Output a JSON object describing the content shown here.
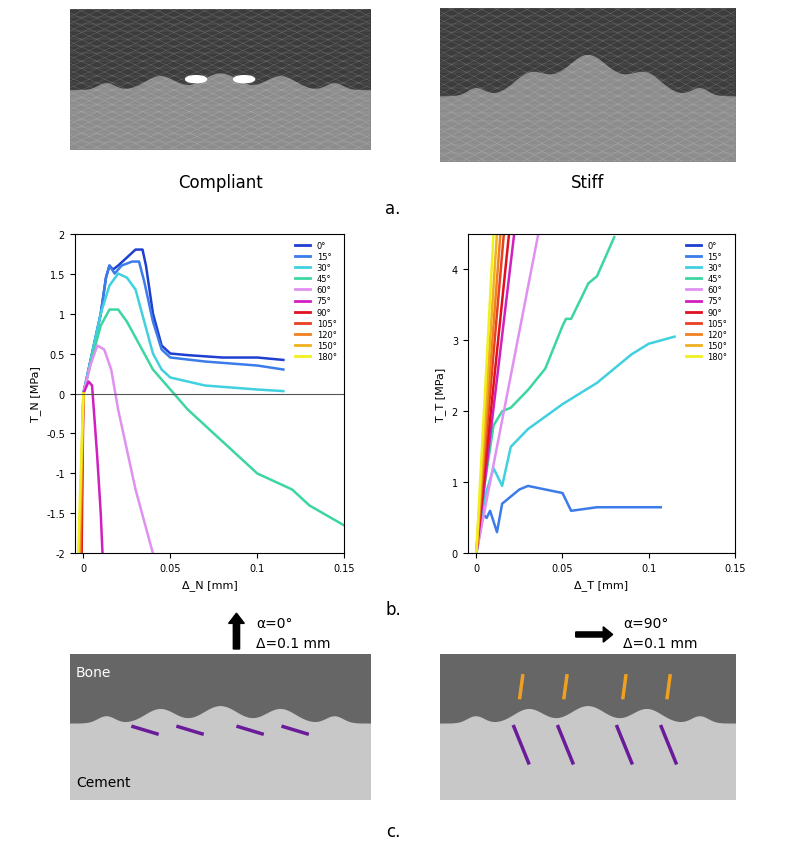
{
  "panel_a": {
    "label": "a.",
    "images": [
      {
        "title": "Compliant"
      },
      {
        "title": "Stiff"
      }
    ]
  },
  "panel_b_label": "b.",
  "chart_data": [
    {
      "type": "line",
      "xlabel": "Δ_N [mm]",
      "ylabel": "T_N [MPa]",
      "xlim": [
        -0.005,
        0.15
      ],
      "xticks": [
        0,
        0.05,
        0.1,
        0.15
      ],
      "ylim": [
        -2,
        2
      ],
      "yticks": [
        -2,
        -1.5,
        -1,
        -0.5,
        0,
        0.5,
        1,
        1.5,
        2
      ],
      "legend": "upper right",
      "series": [
        {
          "name": "0°",
          "color": "#1f3fd0",
          "x": [
            0,
            0.005,
            0.01,
            0.013,
            0.015,
            0.017,
            0.02,
            0.025,
            0.03,
            0.034,
            0.036,
            0.04,
            0.045,
            0.05,
            0.06,
            0.08,
            0.1,
            0.115
          ],
          "values": [
            0,
            0.5,
            1.0,
            1.45,
            1.6,
            1.55,
            1.6,
            1.7,
            1.8,
            1.8,
            1.6,
            1.0,
            0.6,
            0.5,
            0.48,
            0.45,
            0.45,
            0.42
          ]
        },
        {
          "name": "15°",
          "color": "#3b7bea",
          "x": [
            0,
            0.005,
            0.01,
            0.013,
            0.015,
            0.018,
            0.022,
            0.028,
            0.032,
            0.035,
            0.04,
            0.045,
            0.05,
            0.07,
            0.1,
            0.115
          ],
          "values": [
            0,
            0.5,
            1.0,
            1.45,
            1.6,
            1.5,
            1.6,
            1.65,
            1.65,
            1.4,
            0.9,
            0.55,
            0.45,
            0.4,
            0.35,
            0.3
          ]
        },
        {
          "name": "30°",
          "color": "#40d0e0",
          "x": [
            0,
            0.005,
            0.01,
            0.015,
            0.02,
            0.025,
            0.03,
            0.035,
            0.04,
            0.045,
            0.05,
            0.07,
            0.1,
            0.115
          ],
          "values": [
            0,
            0.5,
            1.0,
            1.35,
            1.5,
            1.45,
            1.3,
            0.9,
            0.5,
            0.3,
            0.2,
            0.1,
            0.05,
            0.03
          ]
        },
        {
          "name": "45°",
          "color": "#3cd6a0",
          "x": [
            0,
            0.005,
            0.01,
            0.015,
            0.02,
            0.025,
            0.03,
            0.035,
            0.04,
            0.05,
            0.06,
            0.08,
            0.1,
            0.12,
            0.13,
            0.15
          ],
          "values": [
            0,
            0.45,
            0.85,
            1.05,
            1.05,
            0.9,
            0.7,
            0.5,
            0.3,
            0.05,
            -0.2,
            -0.6,
            -1.0,
            -1.2,
            -1.4,
            -1.65
          ]
        },
        {
          "name": "60°",
          "color": "#e090f0",
          "x": [
            0,
            0.004,
            0.008,
            0.012,
            0.016,
            0.02,
            0.025,
            0.03,
            0.035,
            0.04
          ],
          "values": [
            0,
            0.35,
            0.6,
            0.55,
            0.3,
            -0.2,
            -0.7,
            -1.2,
            -1.6,
            -2.0
          ]
        },
        {
          "name": "75°",
          "color": "#d020c0",
          "x": [
            0,
            0.003,
            0.005,
            0.008,
            0.01,
            0.011
          ],
          "values": [
            0,
            0.15,
            0.1,
            -0.8,
            -1.5,
            -2.0
          ]
        },
        {
          "name": "90°",
          "color": "#e01020",
          "x": [
            0,
            -0.001
          ],
          "values": [
            0,
            -2
          ]
        },
        {
          "name": "105°",
          "color": "#e84020",
          "x": [
            0,
            -0.0015
          ],
          "values": [
            0,
            -2
          ]
        },
        {
          "name": "120°",
          "color": "#f08020",
          "x": [
            0,
            -0.002
          ],
          "values": [
            0,
            -2
          ]
        },
        {
          "name": "150°",
          "color": "#f0b020",
          "x": [
            0,
            -0.0025
          ],
          "values": [
            0,
            -2
          ]
        },
        {
          "name": "180°",
          "color": "#f0f020",
          "x": [
            0,
            -0.003
          ],
          "values": [
            0,
            -2
          ]
        }
      ]
    },
    {
      "type": "line",
      "xlabel": "Δ_T [mm]",
      "ylabel": "T_T [MPa]",
      "xlim": [
        -0.005,
        0.15
      ],
      "xticks": [
        0,
        0.05,
        0.1,
        0.15
      ],
      "ylim": [
        0,
        4.5
      ],
      "yticks": [
        0,
        1,
        2,
        3,
        4
      ],
      "legend": "upper right",
      "series": [
        {
          "name": "0°",
          "color": "#1f3fd0",
          "x": [],
          "values": []
        },
        {
          "name": "15°",
          "color": "#3b7bea",
          "x": [
            0,
            0.004,
            0.006,
            0.008,
            0.012,
            0.015,
            0.02,
            0.025,
            0.03,
            0.04,
            0.05,
            0.055,
            0.07,
            0.09,
            0.107
          ],
          "values": [
            0,
            0.55,
            0.5,
            0.6,
            0.3,
            0.7,
            0.8,
            0.9,
            0.95,
            0.9,
            0.85,
            0.6,
            0.65,
            0.65,
            0.65
          ]
        },
        {
          "name": "30°",
          "color": "#40d0e0",
          "x": [
            0,
            0.005,
            0.01,
            0.015,
            0.02,
            0.03,
            0.05,
            0.07,
            0.09,
            0.1,
            0.115
          ],
          "values": [
            0,
            0.8,
            1.2,
            0.95,
            1.5,
            1.75,
            2.1,
            2.4,
            2.8,
            2.95,
            3.05
          ]
        },
        {
          "name": "45°",
          "color": "#3cd6a0",
          "x": [
            0,
            0.005,
            0.01,
            0.015,
            0.02,
            0.03,
            0.04,
            0.05,
            0.052,
            0.055,
            0.065,
            0.07,
            0.08
          ],
          "values": [
            0,
            1.0,
            1.8,
            2.0,
            2.05,
            2.3,
            2.6,
            3.2,
            3.3,
            3.3,
            3.8,
            3.9,
            4.45
          ]
        },
        {
          "name": "60°",
          "color": "#e090f0",
          "x": [
            0,
            0.036
          ],
          "values": [
            0,
            4.5
          ]
        },
        {
          "name": "75°",
          "color": "#d020c0",
          "x": [
            0,
            0.022
          ],
          "values": [
            0,
            4.5
          ]
        },
        {
          "name": "90°",
          "color": "#e01020",
          "x": [
            0,
            0.019
          ],
          "values": [
            0,
            4.5
          ]
        },
        {
          "name": "105°",
          "color": "#e84020",
          "x": [
            0,
            0.016
          ],
          "values": [
            0,
            4.5
          ]
        },
        {
          "name": "120°",
          "color": "#f08020",
          "x": [
            0,
            0.014
          ],
          "values": [
            0,
            4.5
          ]
        },
        {
          "name": "150°",
          "color": "#f0b020",
          "x": [
            0,
            0.012
          ],
          "values": [
            0,
            4.5
          ]
        },
        {
          "name": "180°",
          "color": "#f0f020",
          "x": [
            0,
            0.01
          ],
          "values": [
            0,
            4.5
          ]
        }
      ]
    }
  ],
  "panel_c": {
    "label": "c.",
    "top_label": "Bone",
    "bottom_label": "Cement",
    "images": [
      {
        "alpha": "α=0°",
        "delta": "Δ=0.1 mm",
        "direction": "up"
      },
      {
        "alpha": "α=90°",
        "delta": "Δ=0.1 mm",
        "direction": "right"
      }
    ]
  }
}
